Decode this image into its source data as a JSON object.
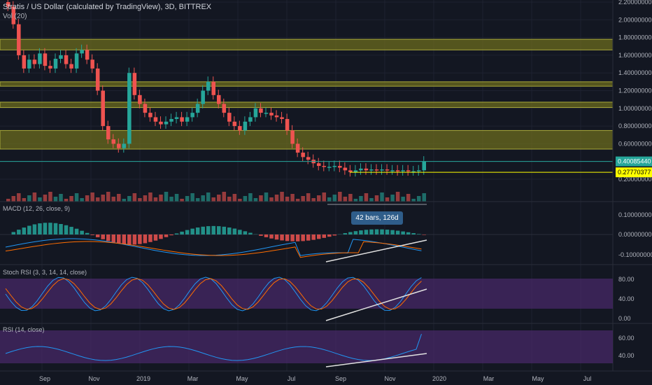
{
  "header": {
    "title": "Stratis / US Dollar (calculated by TradingView), 3D, BITTREX",
    "volume_label": "Vol (20)"
  },
  "indicators": {
    "macd_label": "MACD (12, 26, close, 9)",
    "stoch_label": "Stoch RSI (3, 3, 14, 14, close)",
    "rsi_label": "RSI (14, close)"
  },
  "measure": {
    "text": "42 bars, 126d"
  },
  "colors": {
    "background": "#131722",
    "up": "#26a69a",
    "down": "#ef5350",
    "zone": "#6b6b1e",
    "indicator_band": "#4a2a6b",
    "price_tag_current": "#26a69a",
    "price_tag_level": "#ffff00",
    "macd_line": "#2196f3",
    "signal_line": "#ff6d00",
    "rsi_line": "#2196f3"
  },
  "chart_data": [
    {
      "type": "candlestick",
      "title": "Stratis / US Dollar (calculated by TradingView), 3D, BITTREX",
      "price_axis_ticks": [
        "2.20000000",
        "2.00000000",
        "1.80000000",
        "1.60000000",
        "1.40000000",
        "1.20000000",
        "1.00000000",
        "0.80000000",
        "0.60000000",
        "0.40000000",
        "0.20000000"
      ],
      "x_ticks": [
        "Sep",
        "Nov",
        "2019",
        "Mar",
        "May",
        "Jul",
        "Sep",
        "Nov",
        "2020",
        "Mar",
        "May",
        "Jul"
      ],
      "current_price": "0.40085440",
      "marked_level": "0.27770377",
      "zones": [
        [
          1.66,
          1.78
        ],
        [
          1.25,
          1.3
        ],
        [
          1.01,
          1.07
        ],
        [
          0.54,
          0.75
        ]
      ],
      "close_series": [
        2.15,
        1.95,
        1.6,
        1.45,
        1.55,
        1.5,
        1.62,
        1.48,
        1.45,
        1.56,
        1.6,
        1.5,
        1.45,
        1.62,
        1.66,
        1.55,
        1.45,
        1.2,
        0.8,
        0.65,
        0.6,
        0.55,
        0.6,
        1.4,
        1.15,
        1.05,
        0.95,
        0.9,
        0.85,
        0.82,
        0.85,
        0.88,
        0.9,
        0.85,
        0.9,
        0.95,
        1.05,
        1.2,
        1.3,
        1.15,
        1.05,
        0.95,
        0.85,
        0.8,
        0.75,
        0.85,
        0.9,
        1.0,
        0.95,
        0.95,
        0.92,
        0.9,
        0.88,
        0.75,
        0.6,
        0.5,
        0.45,
        0.42,
        0.38,
        0.35,
        0.34,
        0.34,
        0.35,
        0.33,
        0.3,
        0.28,
        0.3,
        0.32,
        0.3,
        0.31,
        0.3,
        0.31,
        0.3,
        0.3,
        0.29,
        0.3,
        0.29,
        0.29,
        0.3,
        0.4
      ],
      "volume_note": "volume histogram at bottom of price pane"
    },
    {
      "type": "line",
      "title": "MACD (12, 26, close, 9)",
      "y_ticks": [
        "0.10000000",
        "0.00000000",
        "-0.10000000"
      ]
    },
    {
      "type": "line",
      "title": "Stoch RSI (3, 3, 14, 14, close)",
      "y_ticks": [
        "80.00",
        "40.00",
        "0.00"
      ]
    },
    {
      "type": "line",
      "title": "RSI (14, close)",
      "y_ticks": [
        "60.00",
        "40.00"
      ]
    }
  ]
}
